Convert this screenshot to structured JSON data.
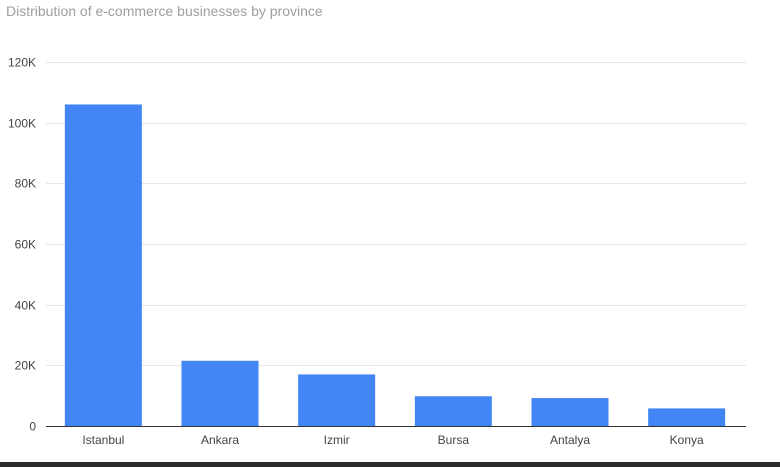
{
  "chart_data": {
    "type": "bar",
    "title": "Distribution of e-commerce businesses by province",
    "xlabel": "",
    "ylabel": "",
    "categories": [
      "Istanbul",
      "Ankara",
      "Izmir",
      "Bursa",
      "Antalya",
      "Konya"
    ],
    "values": [
      106000,
      21500,
      17000,
      9800,
      9200,
      5800
    ],
    "ylim": [
      0,
      120000
    ],
    "yticks": [
      {
        "value": 0,
        "label": "0"
      },
      {
        "value": 20000,
        "label": "20K"
      },
      {
        "value": 40000,
        "label": "40K"
      },
      {
        "value": 60000,
        "label": "60K"
      },
      {
        "value": 80000,
        "label": "80K"
      },
      {
        "value": 100000,
        "label": "100K"
      },
      {
        "value": 120000,
        "label": "120K"
      }
    ],
    "grid": true,
    "legend": "none",
    "colors": {
      "bar": "#4285f4",
      "grid": "#e6e6e6",
      "baseline": "#333333",
      "title": "#9e9e9e",
      "tick_text": "#444444"
    }
  }
}
